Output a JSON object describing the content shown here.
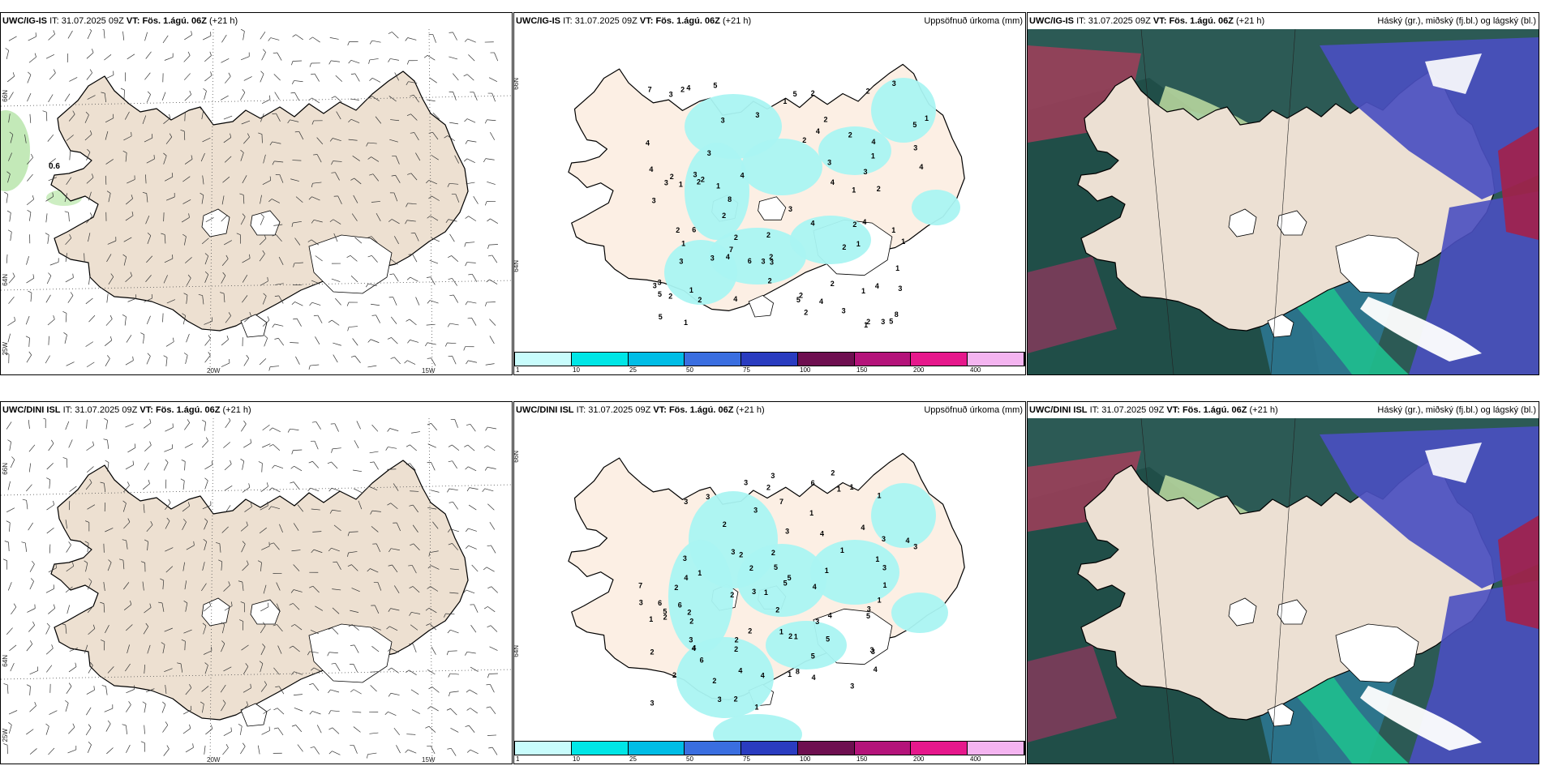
{
  "rows": [
    {
      "model": "UWC/IG-IS",
      "it_label": "IT:",
      "it_value": "31.07.2025 09Z",
      "vt_label": "VT:",
      "vt_value": "Fös. 1.ágú. 06Z",
      "lead": "(+21 h)",
      "wind": {
        "annotation": "0.6",
        "lat_labels": [
          "66N",
          "64N",
          "25W"
        ],
        "lon_labels": [
          "20W",
          "15W"
        ]
      },
      "precip": {
        "title": "Uppsöfnuð úrkoma (mm)",
        "lat_labels": [
          "66N",
          "64N"
        ],
        "numbers": [
          "2",
          "2",
          "2",
          "4",
          "5",
          "3",
          "3",
          "2",
          "4",
          "1",
          "2",
          "5",
          "7",
          "2",
          "8",
          "2",
          "3",
          "4",
          "5",
          "4",
          "3",
          "2",
          "4",
          "3",
          "4",
          "4",
          "5",
          "3",
          "4",
          "3",
          "7",
          "6",
          "2",
          "1",
          "2",
          "4",
          "2",
          "4",
          "6",
          "4",
          "3",
          "8",
          "1",
          "3",
          "3",
          "5",
          "2",
          "3",
          "5",
          "2",
          "2",
          "3",
          "4",
          "2",
          "3",
          "3",
          "2",
          "3",
          "3",
          "1",
          "2",
          "3",
          "4",
          "2",
          "1",
          "3",
          "3",
          "2",
          "2",
          "2",
          "2",
          "3",
          "2",
          "1",
          "3",
          "2",
          "1",
          "1",
          "1",
          "1",
          "1",
          "5",
          "1",
          "4",
          "1",
          "1",
          "1"
        ]
      },
      "cloud": {
        "title": "Háský (gr.), miðský (fj.bl.) og lágský (bl.)"
      }
    },
    {
      "model": "UWC/DINI ISL",
      "it_label": "IT:",
      "it_value": "31.07.2025 09Z",
      "vt_label": "VT:",
      "vt_value": "Fös. 1.ágú. 06Z",
      "lead": "(+21 h)",
      "wind": {
        "annotation": "",
        "lat_labels": [
          "66N",
          "64N",
          "25W"
        ],
        "lon_labels": [
          "20W",
          "15W"
        ]
      },
      "precip": {
        "title": "Uppsöfnuð úrkoma (mm)",
        "lat_labels": [
          "66N",
          "64N"
        ],
        "numbers": [
          "2",
          "1",
          "3",
          "4",
          "2",
          "1",
          "2",
          "4",
          "3",
          "1",
          "6",
          "3",
          "5",
          "5",
          "1",
          "3",
          "4",
          "7",
          "4",
          "2",
          "4",
          "2",
          "3",
          "5",
          "5",
          "4",
          "5",
          "6",
          "3",
          "4",
          "3",
          "6",
          "8",
          "1",
          "3",
          "2",
          "4",
          "4",
          "4",
          "3",
          "3",
          "7",
          "4",
          "2",
          "3",
          "4",
          "3",
          "1",
          "2",
          "5",
          "2",
          "3",
          "2",
          "3",
          "2",
          "1",
          "3",
          "3",
          "3",
          "2",
          "3",
          "2",
          "1",
          "3",
          "2",
          "2",
          "3",
          "1",
          "1",
          "3",
          "5",
          "2",
          "2",
          "6",
          "1",
          "2",
          "1",
          "1",
          "2",
          "1",
          "1",
          "2",
          "1"
        ]
      },
      "cloud": {
        "title": "Háský (gr.), miðský (fj.bl.) og lágský (bl.)"
      }
    }
  ],
  "colorbar": {
    "colors": [
      "#c8fcfc",
      "#00e6e6",
      "#00bde6",
      "#3a6ee0",
      "#2a3cc0",
      "#6e0f50",
      "#b4137a",
      "#e6188c",
      "#f4b4f0"
    ],
    "ticks": [
      "1",
      "10",
      "25",
      "50",
      "75",
      "100",
      "150",
      "200",
      "400"
    ]
  }
}
